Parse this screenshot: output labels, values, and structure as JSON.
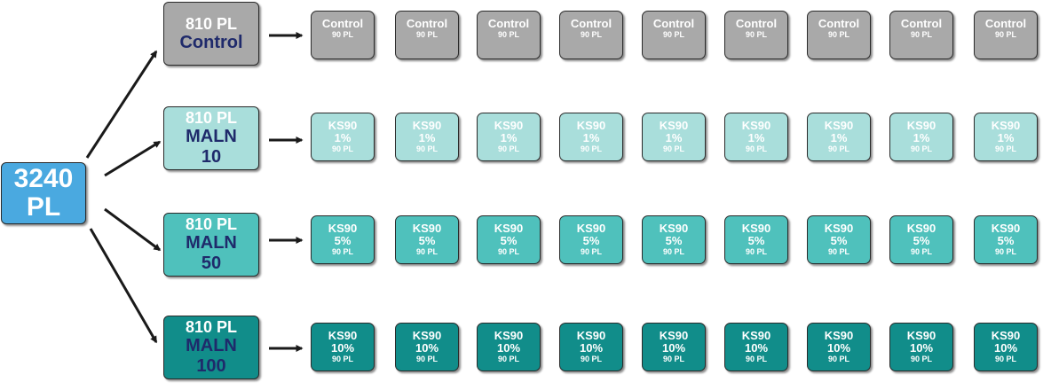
{
  "colors": {
    "root": "#4aa9e0",
    "control": "#a9a9a9",
    "malN10": "#a9dedb",
    "malN50": "#4fc1bc",
    "malN100": "#118d8a",
    "arrow": "#1a1a1a"
  },
  "root": {
    "line1": "3240",
    "line2": "PL"
  },
  "groups": [
    {
      "id": "control",
      "top": "810 PL",
      "name": "Control",
      "num": "",
      "tanks": [
        {
          "name": "Control",
          "conc": "",
          "pl": "90 PL"
        },
        {
          "name": "Control",
          "conc": "",
          "pl": "90 PL"
        },
        {
          "name": "Control",
          "conc": "",
          "pl": "90 PL"
        },
        {
          "name": "Control",
          "conc": "",
          "pl": "90 PL"
        },
        {
          "name": "Control",
          "conc": "",
          "pl": "90 PL"
        },
        {
          "name": "Control",
          "conc": "",
          "pl": "90 PL"
        },
        {
          "name": "Control",
          "conc": "",
          "pl": "90 PL"
        },
        {
          "name": "Control",
          "conc": "",
          "pl": "90 PL"
        },
        {
          "name": "Control",
          "conc": "",
          "pl": "90 PL"
        }
      ]
    },
    {
      "id": "maln10",
      "top": "810 PL",
      "name": "MALN",
      "num": "10",
      "tanks": [
        {
          "name": "KS90",
          "conc": "1%",
          "pl": "90 PL"
        },
        {
          "name": "KS90",
          "conc": "1%",
          "pl": "90 PL"
        },
        {
          "name": "KS90",
          "conc": "1%",
          "pl": "90 PL"
        },
        {
          "name": "KS90",
          "conc": "1%",
          "pl": "90 PL"
        },
        {
          "name": "KS90",
          "conc": "1%",
          "pl": "90 PL"
        },
        {
          "name": "KS90",
          "conc": "1%",
          "pl": "90 PL"
        },
        {
          "name": "KS90",
          "conc": "1%",
          "pl": "90 PL"
        },
        {
          "name": "KS90",
          "conc": "1%",
          "pl": "90 PL"
        },
        {
          "name": "KS90",
          "conc": "1%",
          "pl": "90 PL"
        }
      ]
    },
    {
      "id": "maln50",
      "top": "810 PL",
      "name": "MALN",
      "num": "50",
      "tanks": [
        {
          "name": "KS90",
          "conc": "5%",
          "pl": "90 PL"
        },
        {
          "name": "KS90",
          "conc": "5%",
          "pl": "90 PL"
        },
        {
          "name": "KS90",
          "conc": "5%",
          "pl": "90 PL"
        },
        {
          "name": "KS90",
          "conc": "5%",
          "pl": "90 PL"
        },
        {
          "name": "KS90",
          "conc": "5%",
          "pl": "90 PL"
        },
        {
          "name": "KS90",
          "conc": "5%",
          "pl": "90 PL"
        },
        {
          "name": "KS90",
          "conc": "5%",
          "pl": "90 PL"
        },
        {
          "name": "KS90",
          "conc": "5%",
          "pl": "90 PL"
        },
        {
          "name": "KS90",
          "conc": "5%",
          "pl": "90 PL"
        }
      ]
    },
    {
      "id": "maln100",
      "top": "810 PL",
      "name": "MALN",
      "num": "100",
      "tanks": [
        {
          "name": "KS90",
          "conc": "10%",
          "pl": "90 PL"
        },
        {
          "name": "KS90",
          "conc": "10%",
          "pl": "90 PL"
        },
        {
          "name": "KS90",
          "conc": "10%",
          "pl": "90 PL"
        },
        {
          "name": "KS90",
          "conc": "10%",
          "pl": "90 PL"
        },
        {
          "name": "KS90",
          "conc": "10%",
          "pl": "90 PL"
        },
        {
          "name": "KS90",
          "conc": "10%",
          "pl": "90 PL"
        },
        {
          "name": "KS90",
          "conc": "10%",
          "pl": "90 PL"
        },
        {
          "name": "KS90",
          "conc": "10%",
          "pl": "90 PL"
        },
        {
          "name": "KS90",
          "conc": "10%",
          "pl": "90 PL"
        }
      ]
    }
  ]
}
